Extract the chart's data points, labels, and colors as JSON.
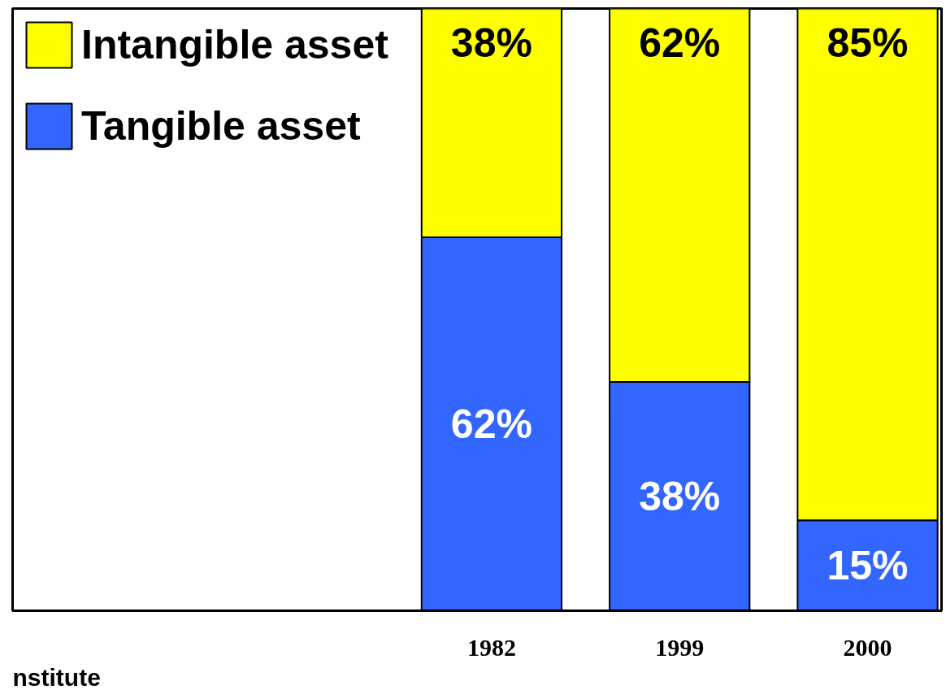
{
  "chart_data": {
    "type": "bar",
    "stacked": true,
    "categories": [
      "1982",
      "1999",
      "2000"
    ],
    "series": [
      {
        "name": "Tangible asset",
        "color": "#3366ff",
        "values": [
          62,
          38,
          15
        ],
        "value_labels": [
          "62%",
          "38%",
          "15%"
        ]
      },
      {
        "name": "Intangible asset",
        "color": "#ffff00",
        "values": [
          38,
          62,
          85
        ],
        "value_labels": [
          "38%",
          "62%",
          "85%"
        ]
      }
    ],
    "tick_labels": "x",
    "legend": "left",
    "grid": false,
    "annotations": [
      "nstitute"
    ]
  }
}
